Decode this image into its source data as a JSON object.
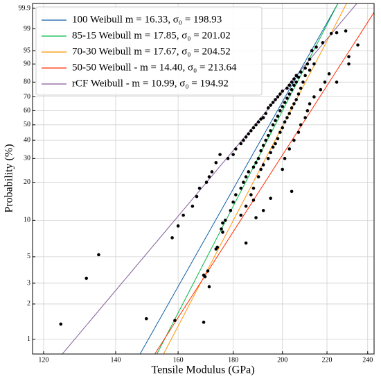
{
  "chart_data": {
    "type": "line",
    "xlabel": "Tensile Modulus (GPa)",
    "ylabel": "Probability (%)",
    "xscale": "log",
    "yscale": "weibull",
    "grid": true,
    "legend": "upper left",
    "xlim": [
      117.2,
      243.3
    ],
    "ylim": [
      0.75,
      99.95
    ],
    "xticks": [
      120,
      140,
      160,
      180,
      200,
      220,
      240
    ],
    "yticks": [
      1,
      2,
      3,
      5,
      10,
      20,
      30,
      40,
      50,
      60,
      70,
      80,
      90,
      95,
      99,
      99.9
    ],
    "series": [
      {
        "name": "100 Weibull m = 16.33, σ₀ = 198.93",
        "color": "#0C5DA5",
        "x": [
          147.5,
          225.2
        ],
        "values": [
          0.75,
          99.95
        ]
      },
      {
        "name": "85-15 Weibull m = 17.85, σ₀ = 201.02",
        "color": "#00B945",
        "x": [
          152.9,
          225.2
        ],
        "values": [
          0.75,
          99.95
        ]
      },
      {
        "name": "70-30 Weibull m = 17.67, σ₀ = 204.52",
        "color": "#FF9500",
        "x": [
          155.1,
          229.4
        ],
        "values": [
          0.75,
          99.95
        ]
      },
      {
        "name": "50-50 Weibull - m = 14.40, σ₀ = 213.64",
        "color": "#FF2C00",
        "x": [
          152.2,
          243.3
        ],
        "values": [
          0.75,
          99.83
        ]
      },
      {
        "name": "rCF Weibull - m = 10.99, σ₀ = 194.92",
        "color": "#845B97",
        "x": [
          124.9,
          234.5
        ],
        "values": [
          0.75,
          99.95
        ]
      }
    ],
    "points": {
      "color": "#000000",
      "x": [
        124.5,
        131.5,
        135,
        149.5,
        158.9,
        158,
        160,
        161.8,
        165,
        166.5,
        167.5,
        169,
        169,
        169.5,
        170.5,
        171,
        170,
        171,
        172,
        173.5,
        175,
        173.5,
        174,
        175.5,
        176,
        185,
        188,
        201,
        204,
        224.6,
        224.6,
        229,
        230.5,
        230.5,
        235,
        178,
        180,
        181,
        183,
        184,
        185,
        186,
        187,
        188,
        189,
        190,
        191,
        192,
        193,
        194,
        195,
        196,
        197,
        198,
        199,
        200,
        202,
        203,
        204,
        205,
        206,
        208,
        210,
        211,
        212,
        213,
        215,
        218,
        222,
        176,
        177,
        179,
        180,
        181,
        183,
        184,
        185,
        186,
        188,
        189,
        190,
        191,
        192,
        193,
        194,
        195,
        196,
        197,
        198,
        199,
        200,
        201,
        202,
        203,
        204,
        205,
        206,
        207,
        183,
        185,
        187,
        188,
        190,
        191,
        192,
        194,
        195,
        196,
        197,
        198,
        199,
        200,
        201,
        202,
        203,
        204,
        205,
        206,
        207,
        208,
        209,
        210,
        212,
        214,
        189,
        192,
        195,
        200,
        203,
        205,
        207,
        208,
        210,
        211,
        212,
        214,
        217,
        219,
        221
      ],
      "y": [
        1.35,
        3.3,
        5.2,
        1.5,
        1.45,
        7.2,
        9,
        11,
        13,
        15.5,
        18,
        1.4,
        3.5,
        3.4,
        3.8,
        2.8,
        20,
        22,
        24,
        28,
        32,
        5.8,
        6,
        8.5,
        9.5,
        6.5,
        14.5,
        30,
        17,
        80,
        98.6,
        98.8,
        90,
        93,
        96.5,
        30,
        32,
        35,
        38,
        40,
        42,
        44,
        46,
        48,
        50,
        52,
        54,
        55,
        58,
        62,
        64,
        66,
        68,
        70,
        72,
        74,
        76,
        78,
        80,
        82,
        84,
        86,
        88,
        90,
        92,
        95,
        96,
        97,
        98.5,
        8,
        10,
        12,
        14,
        16,
        18,
        20,
        22,
        24,
        26,
        28,
        30,
        34,
        37,
        40,
        43,
        46,
        50,
        53,
        56,
        60,
        63,
        66,
        69,
        72,
        75,
        78,
        80,
        83,
        11,
        13,
        16,
        18,
        22,
        25,
        27,
        30,
        33,
        36,
        38,
        41,
        45,
        48,
        52,
        55,
        58,
        62,
        65,
        68,
        72,
        76,
        80,
        84,
        87,
        90,
        10.5,
        12,
        15,
        25,
        35,
        40,
        45,
        50,
        55,
        60,
        65,
        70,
        75,
        80,
        85
      ]
    }
  }
}
